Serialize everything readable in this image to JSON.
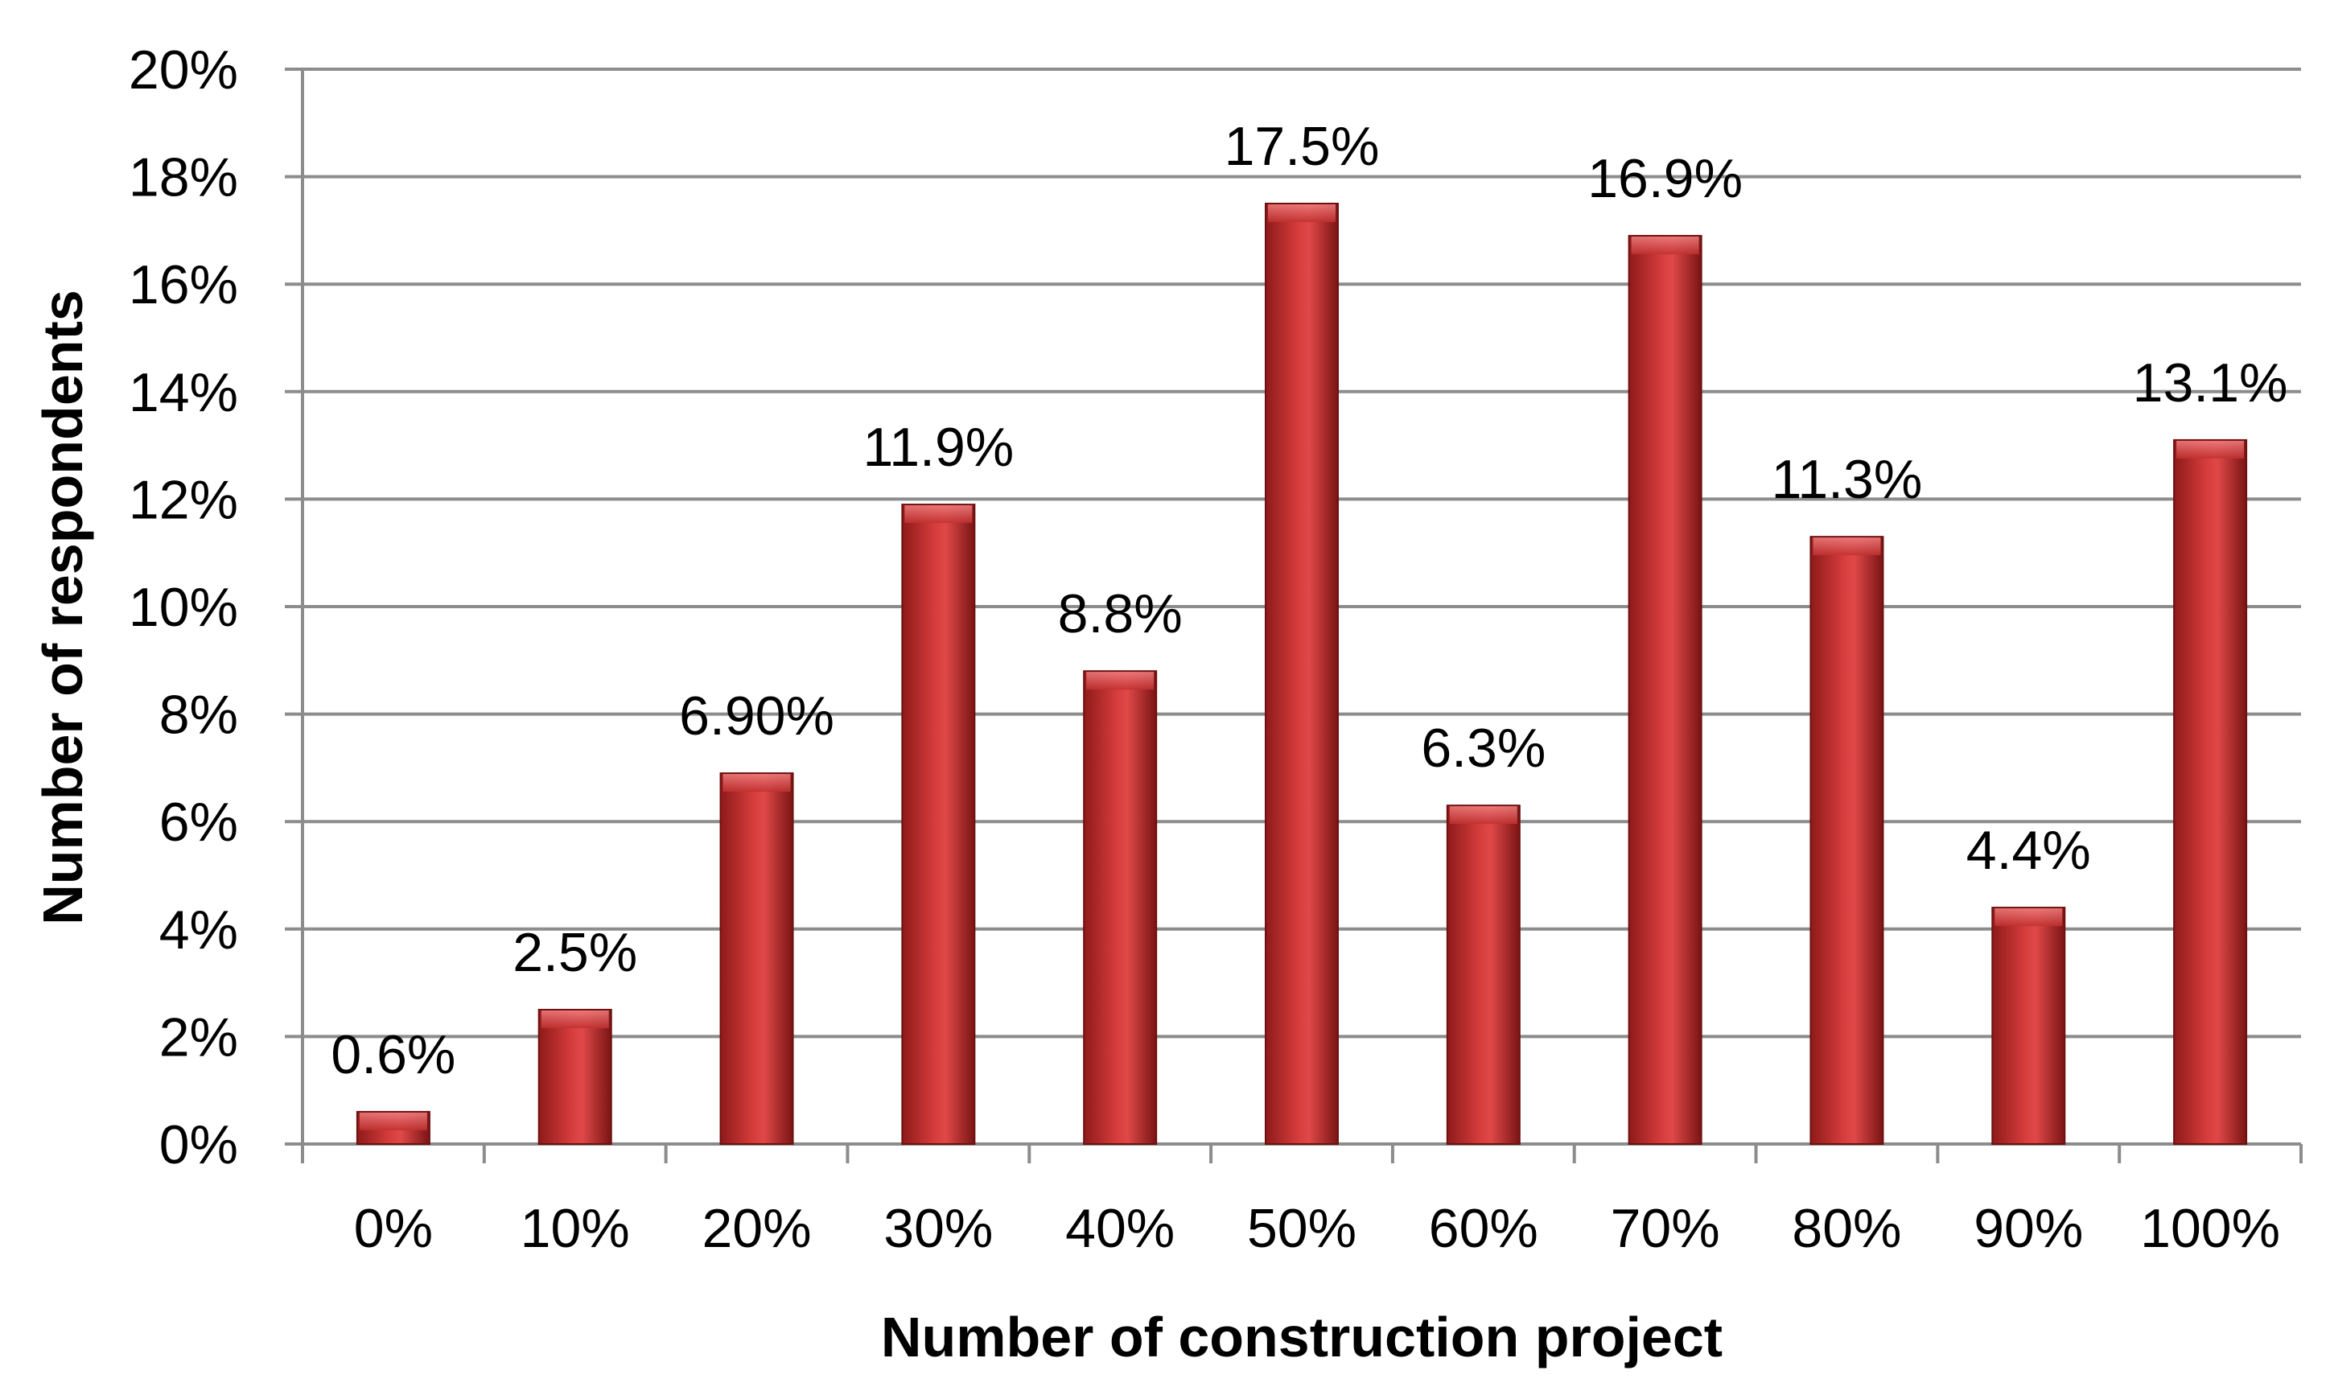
{
  "chart_data": {
    "type": "bar",
    "title": "",
    "xlabel": "Number of construction project",
    "ylabel": "Number of respondents",
    "categories": [
      "0%",
      "10%",
      "20%",
      "30%",
      "40%",
      "50%",
      "60%",
      "70%",
      "80%",
      "90%",
      "100%"
    ],
    "values": [
      0.6,
      2.5,
      6.9,
      11.9,
      8.8,
      17.5,
      6.3,
      16.9,
      11.3,
      4.4,
      13.1
    ],
    "data_labels": [
      "0.6%",
      "2.5%",
      "6.90%",
      "11.9%",
      "8.8%",
      "17.5%",
      "6.3%",
      "16.9%",
      "11.3%",
      "4.4%",
      "13.1%"
    ],
    "ylim": [
      0,
      20
    ],
    "yticks": [
      0,
      2,
      4,
      6,
      8,
      10,
      12,
      14,
      16,
      18,
      20
    ],
    "ytick_labels": [
      "0%",
      "2%",
      "4%",
      "6%",
      "8%",
      "10%",
      "12%",
      "14%",
      "16%",
      "18%",
      "20%"
    ],
    "grid": true,
    "legend": "none",
    "colors": {
      "bar_dark": "#8e1a1a",
      "bar_mid": "#c62f2f",
      "bar_light": "#e04848",
      "grid": "#8c8c8c"
    }
  }
}
